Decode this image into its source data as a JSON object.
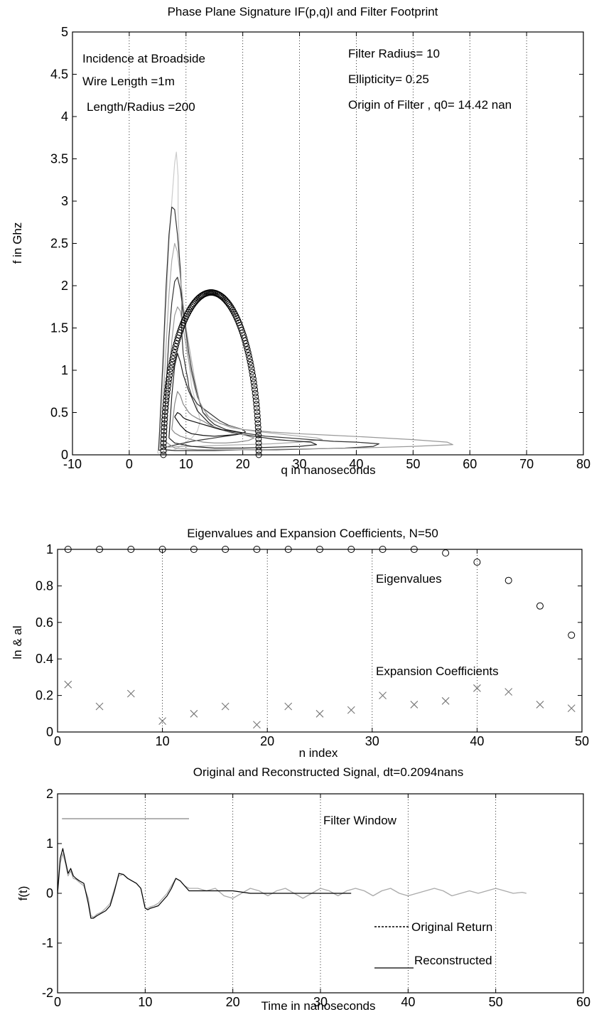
{
  "chart_data": [
    {
      "type": "line",
      "title": "Phase Plane Signature IF(p,q)I and Filter Footprint",
      "xlabel": "q in nanoseconds",
      "ylabel": "f in Ghz",
      "xlim": [
        -10,
        80
      ],
      "ylim": [
        0,
        5
      ],
      "xticks": [
        -10,
        0,
        10,
        20,
        30,
        40,
        50,
        60,
        70,
        80
      ],
      "yticks": [
        0,
        0.5,
        1,
        1.5,
        2,
        2.5,
        3,
        3.5,
        4,
        4.5,
        5
      ],
      "xtick_labels": [
        "-10",
        "0",
        "10",
        "20",
        "30",
        "40",
        "50",
        "60",
        "70",
        "80"
      ],
      "ytick_labels": [
        "0",
        "0.5",
        "1",
        "1.5",
        "2",
        "2.5",
        "3",
        "3.5",
        "4",
        "4.5",
        "5"
      ],
      "grid": "x-dotted",
      "annotations": [
        "Incidence at Broadside",
        "Wire Length =1m",
        "Length/Radius =200",
        "Filter Radius= 10",
        "Ellipticity= 0.25",
        "Origin of Filter , q0= 14.42 nan"
      ],
      "filter_footprint": {
        "center_q": 14.42,
        "half_width_q": 8.4,
        "peak_f": 1.92,
        "points": 130,
        "marker": "circle"
      },
      "contours": [
        {
          "color": "#cccccc",
          "q": [
            5,
            5.5,
            6,
            6.2,
            6.6,
            7,
            7.5,
            8,
            8.3,
            8.6,
            8.6,
            8.8,
            9,
            9.5,
            10,
            10.5,
            11,
            12,
            12.5,
            12,
            11,
            10,
            9.5,
            9,
            8.5,
            8,
            7.5,
            7,
            6.5,
            6,
            5.5,
            5.2,
            5
          ],
          "f": [
            0.02,
            0.4,
            0.9,
            1.4,
            1.9,
            2.5,
            3.0,
            3.45,
            3.58,
            3.3,
            2.9,
            2.5,
            2.0,
            1.7,
            1.4,
            1.1,
            0.8,
            0.55,
            0.4,
            0.28,
            0.2,
            0.15,
            0.12,
            0.1,
            0.08,
            0.06,
            0.05,
            0.05,
            0.04,
            0.04,
            0.03,
            0.02,
            0.02
          ]
        },
        {
          "color": "#333333",
          "q": [
            5.2,
            5.5,
            6,
            6.5,
            7,
            7.5,
            8,
            8.5,
            9,
            9.3,
            9.2,
            9.5,
            10,
            10.3,
            10.5,
            11,
            12,
            13,
            14,
            15,
            16,
            17.5,
            19,
            20,
            20.5,
            19,
            17,
            15,
            13,
            11,
            9,
            7,
            6,
            5.5,
            5.2
          ],
          "f": [
            0.05,
            0.5,
            1.2,
            2.0,
            2.6,
            2.93,
            2.9,
            2.6,
            2.2,
            1.8,
            1.5,
            1.2,
            1.0,
            0.9,
            0.8,
            0.7,
            0.6,
            0.55,
            0.5,
            0.45,
            0.4,
            0.35,
            0.32,
            0.3,
            0.27,
            0.24,
            0.22,
            0.2,
            0.18,
            0.16,
            0.13,
            0.1,
            0.08,
            0.06,
            0.05
          ]
        },
        {
          "color": "#aaaaaa",
          "q": [
            5.5,
            6,
            6.5,
            7,
            7.5,
            8,
            8.5,
            9,
            9.5,
            10,
            10.5,
            11,
            11.5,
            12,
            12.5,
            13,
            15,
            18,
            22,
            26,
            30,
            33,
            34,
            30,
            25,
            20,
            15,
            12,
            9,
            7,
            6,
            5.5
          ],
          "f": [
            0.1,
            0.6,
            1.3,
            1.9,
            2.3,
            2.5,
            2.4,
            2.1,
            1.8,
            1.5,
            1.3,
            1.1,
            0.9,
            0.75,
            0.6,
            0.5,
            0.4,
            0.32,
            0.28,
            0.25,
            0.22,
            0.2,
            0.18,
            0.15,
            0.13,
            0.12,
            0.11,
            0.1,
            0.1,
            0.09,
            0.1,
            0.1
          ]
        },
        {
          "color": "#333333",
          "q": [
            6,
            6.5,
            7,
            7.5,
            8,
            8.5,
            9,
            9.5,
            10,
            10.5,
            11,
            11.5,
            12,
            12.5,
            13,
            14,
            15,
            17,
            20,
            24,
            28,
            32,
            36,
            40,
            44,
            43,
            38,
            32,
            26,
            20,
            15,
            10,
            8,
            6.5,
            6
          ],
          "f": [
            0.1,
            0.8,
            1.4,
            1.8,
            2.05,
            2.1,
            1.95,
            1.7,
            1.45,
            1.2,
            1.0,
            0.85,
            0.7,
            0.6,
            0.5,
            0.42,
            0.36,
            0.3,
            0.26,
            0.22,
            0.2,
            0.18,
            0.16,
            0.15,
            0.13,
            0.1,
            0.08,
            0.07,
            0.06,
            0.06,
            0.05,
            0.05,
            0.05,
            0.06,
            0.1
          ]
        },
        {
          "color": "#999999",
          "q": [
            6.5,
            7,
            7.5,
            8,
            8.5,
            9,
            9.5,
            10,
            10.5,
            11,
            11.5,
            12,
            13,
            14,
            16,
            20,
            25,
            30,
            36,
            42,
            50,
            56,
            57,
            50,
            40,
            30,
            20,
            12,
            8,
            6.5
          ],
          "f": [
            0.15,
            0.9,
            1.35,
            1.65,
            1.75,
            1.7,
            1.5,
            1.3,
            1.1,
            0.95,
            0.8,
            0.68,
            0.55,
            0.45,
            0.37,
            0.3,
            0.27,
            0.25,
            0.23,
            0.21,
            0.18,
            0.15,
            0.12,
            0.1,
            0.08,
            0.07,
            0.06,
            0.06,
            0.08,
            0.15
          ]
        },
        {
          "color": "#222222",
          "q": [
            7,
            7.5,
            8,
            8.5,
            9,
            9.5,
            10,
            10.5,
            11,
            11.5,
            12,
            13,
            14,
            15,
            17,
            20,
            22,
            24,
            26,
            28,
            30,
            32,
            33,
            30,
            25,
            20,
            15,
            11,
            8,
            7
          ],
          "f": [
            0.2,
            0.7,
            1.05,
            1.2,
            1.1,
            0.95,
            0.85,
            0.75,
            0.68,
            0.6,
            0.52,
            0.45,
            0.38,
            0.33,
            0.28,
            0.24,
            0.22,
            0.2,
            0.18,
            0.17,
            0.16,
            0.15,
            0.12,
            0.1,
            0.09,
            0.08,
            0.08,
            0.1,
            0.14,
            0.2
          ]
        },
        {
          "color": "#888888",
          "q": [
            7.5,
            8,
            8.5,
            9,
            9.5,
            10,
            10.5,
            11,
            12,
            13,
            14,
            15,
            16,
            17,
            18,
            19,
            20,
            21,
            22,
            21,
            19,
            17,
            15,
            13,
            11,
            9,
            8,
            7.5
          ],
          "f": [
            0.3,
            0.6,
            0.75,
            0.7,
            0.6,
            0.55,
            0.5,
            0.47,
            0.43,
            0.4,
            0.36,
            0.33,
            0.3,
            0.28,
            0.26,
            0.25,
            0.24,
            0.22,
            0.2,
            0.17,
            0.15,
            0.14,
            0.14,
            0.15,
            0.18,
            0.22,
            0.26,
            0.3
          ]
        },
        {
          "color": "#111111",
          "q": [
            8,
            8.5,
            9,
            9.5,
            10,
            11,
            12,
            13,
            14,
            15,
            16,
            17,
            18,
            19,
            20,
            19,
            17,
            15,
            13,
            11,
            10,
            9,
            8
          ],
          "f": [
            0.45,
            0.5,
            0.48,
            0.44,
            0.42,
            0.4,
            0.38,
            0.36,
            0.34,
            0.32,
            0.3,
            0.29,
            0.28,
            0.27,
            0.26,
            0.24,
            0.23,
            0.22,
            0.23,
            0.25,
            0.28,
            0.35,
            0.45
          ]
        }
      ]
    },
    {
      "type": "scatter",
      "title": "Eigenvalues and Expansion Coefficients, N=50",
      "xlabel": "n index",
      "ylabel": "ln & al",
      "xlim": [
        0,
        50
      ],
      "ylim": [
        0,
        1
      ],
      "xticks": [
        0,
        10,
        20,
        30,
        40,
        50
      ],
      "yticks": [
        0,
        0.2,
        0.4,
        0.6,
        0.8,
        1
      ],
      "xtick_labels": [
        "0",
        "10",
        "20",
        "30",
        "40",
        "50"
      ],
      "ytick_labels": [
        "0",
        "0.2",
        "0.4",
        "0.6",
        "0.8",
        "1"
      ],
      "grid": "x-dotted",
      "annotations": [
        "Eigenvalues",
        "Expansion Coefficients"
      ],
      "series": [
        {
          "name": "Eigenvalues",
          "marker": "circle",
          "x": [
            1,
            4,
            7,
            10,
            13,
            16,
            19,
            22,
            25,
            28,
            31,
            34,
            37,
            40,
            43,
            46,
            49
          ],
          "y": [
            1.0,
            1.0,
            1.0,
            1.0,
            1.0,
            1.0,
            1.0,
            1.0,
            1.0,
            1.0,
            1.0,
            1.0,
            0.98,
            0.93,
            0.83,
            0.69,
            0.53
          ]
        },
        {
          "name": "Expansion Coefficients",
          "marker": "x",
          "x": [
            1,
            4,
            7,
            10,
            13,
            16,
            19,
            22,
            25,
            28,
            31,
            34,
            37,
            40,
            43,
            46,
            49
          ],
          "y": [
            0.26,
            0.14,
            0.21,
            0.06,
            0.1,
            0.14,
            0.04,
            0.14,
            0.1,
            0.12,
            0.2,
            0.15,
            0.17,
            0.24,
            0.22,
            0.15,
            0.13
          ]
        }
      ]
    },
    {
      "type": "line",
      "title": "Original and Reconstructed Signal,  dt=0.2094nans",
      "xlabel": "Time in nanoseconds",
      "ylabel": "f(t)",
      "xlim": [
        0,
        60
      ],
      "ylim": [
        -2,
        2
      ],
      "xticks": [
        0,
        10,
        20,
        30,
        40,
        50,
        60
      ],
      "yticks": [
        -2,
        -1,
        0,
        1,
        2
      ],
      "xtick_labels": [
        "0",
        "10",
        "20",
        "30",
        "40",
        "50",
        "60"
      ],
      "ytick_labels": [
        "-2",
        "-1",
        "0",
        "1",
        "2"
      ],
      "grid": "x-dotted",
      "annotations": [
        "Filter Window",
        "Original Return",
        "Reconstructed"
      ],
      "series": [
        {
          "name": "Original Return",
          "color": "#aaaaaa",
          "x": [
            0,
            0.3,
            0.6,
            0.9,
            1.2,
            1.5,
            1.8,
            2.1,
            2.5,
            3,
            3.5,
            3.8,
            4.1,
            4.5,
            5,
            5.5,
            6,
            6.5,
            7,
            7.5,
            8,
            8.5,
            9,
            9.5,
            10,
            10.3,
            10.6,
            11,
            11.5,
            12,
            12.5,
            13,
            13.5,
            14,
            14.5,
            15,
            16,
            17,
            18,
            19,
            20,
            21,
            22,
            23,
            24,
            25,
            26,
            27,
            28,
            29,
            30,
            31,
            32,
            33,
            34,
            35,
            36,
            37,
            38,
            39,
            40,
            41,
            42,
            43,
            44,
            45,
            46,
            47,
            48,
            49,
            50,
            51,
            52,
            53,
            53.5
          ],
          "y": [
            0,
            0.6,
            0.8,
            0.6,
            0.35,
            0.45,
            0.3,
            0.28,
            0.22,
            0.15,
            -0.1,
            -0.45,
            -0.48,
            -0.42,
            -0.38,
            -0.3,
            -0.2,
            0.1,
            0.35,
            0.38,
            0.3,
            0.25,
            0.2,
            0.1,
            -0.3,
            -0.3,
            -0.27,
            -0.25,
            -0.2,
            -0.1,
            0,
            0.15,
            0.3,
            0.25,
            0.15,
            0.1,
            0.1,
            0.05,
            0.1,
            -0.05,
            -0.1,
            0,
            0.1,
            0.05,
            -0.05,
            0.05,
            0.1,
            0,
            -0.1,
            0,
            0.1,
            0.05,
            -0.05,
            0.05,
            0.1,
            0.05,
            -0.05,
            0.05,
            0.1,
            0,
            -0.05,
            0,
            0.05,
            0.1,
            0.05,
            -0.05,
            0,
            0.05,
            0,
            0.05,
            0.1,
            0.05,
            0,
            0.02,
            0
          ]
        },
        {
          "name": "Reconstructed",
          "color": "#000000",
          "x": [
            0,
            0.3,
            0.6,
            0.9,
            1.2,
            1.5,
            1.8,
            2.1,
            2.5,
            3,
            3.5,
            3.8,
            4.1,
            4.5,
            5,
            5.5,
            6,
            6.5,
            7,
            7.5,
            8,
            8.5,
            9,
            9.5,
            10,
            10.3,
            10.6,
            11,
            11.5,
            12,
            12.5,
            13,
            13.5,
            14,
            14.5,
            15,
            16,
            18,
            20,
            22,
            25,
            28,
            30,
            33.5
          ],
          "y": [
            0,
            0.7,
            0.9,
            0.65,
            0.4,
            0.5,
            0.35,
            0.3,
            0.25,
            0.2,
            -0.2,
            -0.5,
            -0.5,
            -0.45,
            -0.4,
            -0.35,
            -0.25,
            0.05,
            0.4,
            0.38,
            0.3,
            0.25,
            0.2,
            0.1,
            -0.3,
            -0.33,
            -0.3,
            -0.28,
            -0.25,
            -0.15,
            -0.05,
            0.1,
            0.3,
            0.25,
            0.15,
            0.05,
            0.05,
            0.05,
            0.05,
            0,
            0,
            0,
            0,
            0
          ]
        },
        {
          "name": "Filter Window",
          "color": "#999999",
          "x": [
            0.5,
            15
          ],
          "y": [
            1.5,
            1.5
          ]
        }
      ]
    }
  ]
}
